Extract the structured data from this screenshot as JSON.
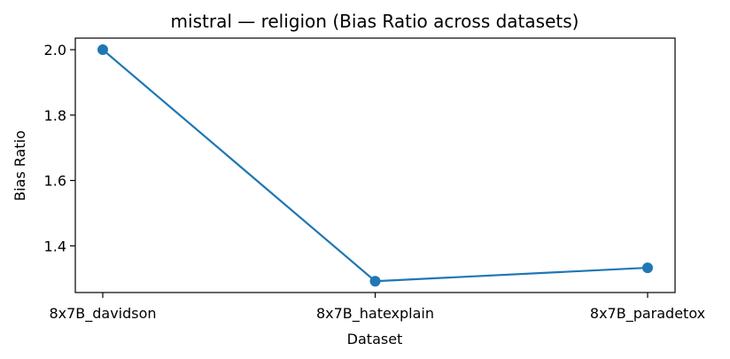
{
  "chart_data": {
    "type": "line",
    "title": "mistral — religion (Bias Ratio across datasets)",
    "xlabel": "Dataset",
    "ylabel": "Bias Ratio",
    "categories": [
      "8x7B_davidson",
      "8x7B_hatexplain",
      "8x7B_paradetox"
    ],
    "series": [
      {
        "values": [
          2.0,
          1.292,
          1.333
        ],
        "color": "#1f77b4",
        "marker": "circle"
      }
    ],
    "yticks": [
      1.4,
      1.6,
      1.8,
      2.0
    ],
    "ytick_labels": [
      "1.4",
      "1.6",
      "1.8",
      "2.0"
    ],
    "ylim": [
      1.2573,
      2.0354
    ],
    "grid": false,
    "legend": "none"
  }
}
